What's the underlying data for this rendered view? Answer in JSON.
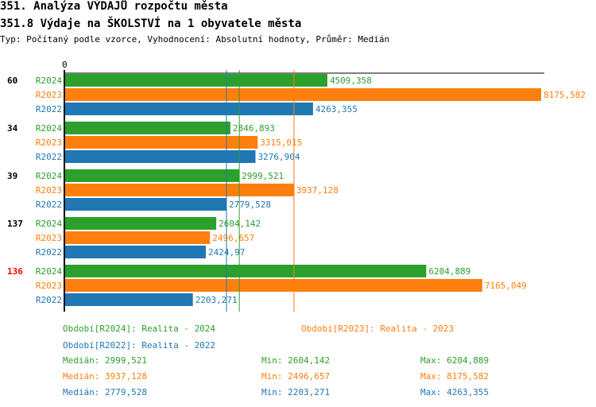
{
  "title": "351. Analýza VÝDAJŮ rozpočtu města",
  "subtitle": "351.8 Výdaje na ŠKOLSTVÍ na 1 obyvatele města",
  "info": "Typ: Počítaný podle vzorce, Vyhodnocení: Absolutní hodnoty, Průměr: Medián",
  "colors": {
    "R2024": "#2ca02c",
    "R2023": "#ff7f0e",
    "R2022": "#1f77b4",
    "highlight": "#ff0000"
  },
  "chart_data": {
    "type": "bar",
    "orientation": "horizontal",
    "x_tick_label": "0",
    "xlim": [
      0,
      8175.582
    ],
    "categories": [
      "60",
      "34",
      "39",
      "137",
      "136"
    ],
    "highlighted_category": "136",
    "series": [
      {
        "name": "R2024",
        "values": [
          4509.358,
          2846.893,
          2999.521,
          2604.142,
          6204.889
        ],
        "labels": [
          "4509,358",
          "2846,893",
          "2999,521",
          "2604,142",
          "6204,889"
        ]
      },
      {
        "name": "R2023",
        "values": [
          8175.582,
          3315.015,
          3937.128,
          2496.657,
          7165.049
        ],
        "labels": [
          "8175,582",
          "3315,015",
          "3937,128",
          "2496,657",
          "7165,049"
        ]
      },
      {
        "name": "R2022",
        "values": [
          4263.355,
          3276.904,
          2779.528,
          2424.97,
          2203.271
        ],
        "labels": [
          "4263,355",
          "3276,904",
          "2779,528",
          "2424,97",
          "2203,271"
        ]
      }
    ],
    "median_lines": {
      "R2024": 2999.521,
      "R2023": 3937.128,
      "R2022": 2779.528
    }
  },
  "legend": {
    "r2024": "Období[R2024]: Realita - 2024",
    "r2023": "Období[R2023]: Realita - 2023",
    "r2022": "Období[R2022]: Realita - 2022",
    "stats": [
      {
        "median": "Medián: 2999,521",
        "min": "Min: 2604,142",
        "max": "Max: 6204,889"
      },
      {
        "median": "Medián: 3937,128",
        "min": "Min: 2496,657",
        "max": "Max: 8175,582"
      },
      {
        "median": "Medián: 2779,528",
        "min": "Min: 2203,271",
        "max": "Max: 4263,355"
      }
    ]
  }
}
